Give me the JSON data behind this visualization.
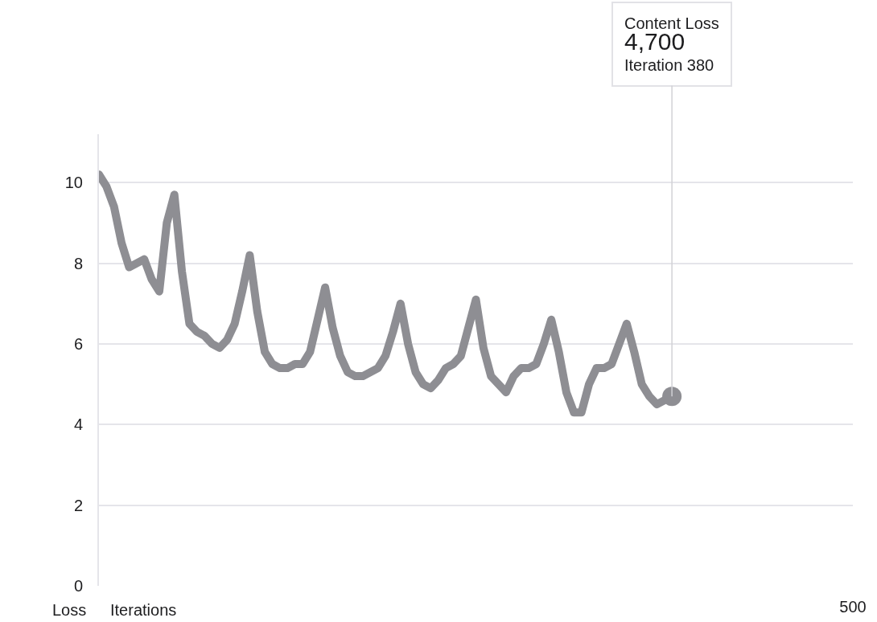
{
  "chart_data": {
    "type": "line",
    "xlabel": "Iterations",
    "ylabel": "Loss",
    "categories": [
      null,
      null,
      null,
      null,
      null,
      null,
      null,
      null,
      null,
      null,
      null,
      null,
      null,
      null,
      null,
      null,
      null,
      null,
      null,
      null,
      null,
      null,
      null,
      null,
      null,
      null,
      null,
      null,
      null,
      null,
      null,
      null,
      null,
      null,
      null,
      null,
      null,
      null,
      null,
      null,
      null,
      null,
      null,
      null,
      null,
      null,
      null,
      null,
      null,
      null,
      null,
      null,
      null,
      null,
      null,
      null,
      null,
      null,
      null,
      null,
      null,
      null,
      null,
      null,
      null,
      null,
      null,
      null,
      null,
      null,
      null,
      null,
      null,
      null,
      null,
      null,
      null,
      null,
      null,
      null,
      null,
      null,
      null,
      null,
      null,
      null,
      null,
      null,
      null,
      null,
      null,
      null,
      null,
      null,
      null,
      null,
      null,
      null,
      null,
      null,
      "500"
    ],
    "series": [
      {
        "color": "#8e8e93",
        "values": [
          10.2,
          9.9,
          9.4,
          8.5,
          7.9,
          8.0,
          8.1,
          7.6,
          7.3,
          9.0,
          9.7,
          7.8,
          6.5,
          6.3,
          6.2,
          6.0,
          5.9,
          6.1,
          6.5,
          7.3,
          8.2,
          6.8,
          5.8,
          5.5,
          5.4,
          5.4,
          5.5,
          5.5,
          5.8,
          6.6,
          7.4,
          6.4,
          5.7,
          5.3,
          5.2,
          5.2,
          5.3,
          5.4,
          5.7,
          6.3,
          7.0,
          6.0,
          5.3,
          5.0,
          4.9,
          5.1,
          5.4,
          5.5,
          5.7,
          6.4,
          7.1,
          5.9,
          5.2,
          5.0,
          4.8,
          5.2,
          5.4,
          5.4,
          5.5,
          6.0,
          6.6,
          5.8,
          4.8,
          4.3,
          4.3,
          5.0,
          5.4,
          5.4,
          5.5,
          6.0,
          6.5,
          5.8,
          5.0,
          4.7,
          4.5,
          4.6,
          4.7,
          null,
          null,
          null,
          null,
          null,
          null,
          null,
          null,
          null,
          null,
          null,
          null,
          null,
          null,
          null,
          null,
          null,
          null,
          null,
          null,
          null,
          null,
          null,
          null
        ]
      }
    ],
    "ylim": [
      0,
      11.2
    ],
    "yticks": [
      0,
      2,
      4,
      6,
      8,
      10
    ],
    "grid": "y",
    "line_style": "solid",
    "marker": "none",
    "annotations": [
      {
        "text": "Content Loss\n4,700\nIteration 380",
        "y": 4.7
      }
    ]
  }
}
